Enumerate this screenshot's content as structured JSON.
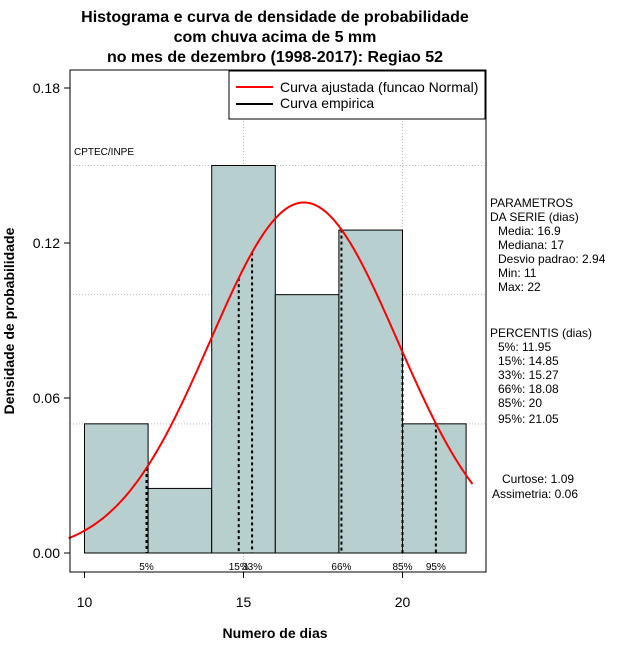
{
  "chart_data": {
    "type": "bar",
    "title_lines": [
      "Histograma e curva de densidade de probabilidade",
      "com chuva acima de 5 mm",
      "no mes de dezembro (1998-2017): Regiao 52"
    ],
    "xlabel": "Numero de dias",
    "ylabel": "Densidade de probabilidade",
    "xlim": [
      9.5,
      22.5
    ],
    "ylim": [
      0,
      0.18
    ],
    "x_ticks": [
      10,
      15,
      20
    ],
    "y_ticks": [
      0.0,
      0.06,
      0.12,
      0.18
    ],
    "y_tick_labels": [
      "0.00",
      "0.06",
      "0.12",
      "0.18"
    ],
    "grid_y": [
      0.05,
      0.1,
      0.15
    ],
    "grid_x": [
      15,
      20
    ],
    "bins": [
      {
        "from": 10,
        "to": 12,
        "density": 0.05
      },
      {
        "from": 12,
        "to": 14,
        "density": 0.025
      },
      {
        "from": 14,
        "to": 16,
        "density": 0.15
      },
      {
        "from": 16,
        "to": 18,
        "density": 0.1
      },
      {
        "from": 18,
        "to": 20,
        "density": 0.125
      },
      {
        "from": 20,
        "to": 22,
        "density": 0.05
      }
    ],
    "normal_curve": {
      "mean": 16.9,
      "sd": 2.94,
      "color": "#ff0000"
    },
    "bar_color": "#b7cfcf",
    "percentiles": [
      {
        "label": "5%",
        "value": 11.95
      },
      {
        "label": "15%",
        "value": 14.85
      },
      {
        "label": "33%",
        "value": 15.27
      },
      {
        "label": "66%",
        "value": 18.08
      },
      {
        "label": "85%",
        "value": 20
      },
      {
        "label": "95%",
        "value": 21.05
      }
    ],
    "legend": [
      {
        "label": "Curva ajustada (funcao Normal)",
        "color": "#ff0000"
      },
      {
        "label": "Curva empirica",
        "color": "#000000"
      }
    ],
    "source_label": "CPTEC/INPE",
    "side_panel": {
      "parametros_title": [
        "PARAMETROS",
        "DA SERIE (dias)"
      ],
      "parametros": [
        "Media: 16.9",
        "Mediana: 17",
        "Desvio padrao: 2.94",
        "Min: 11",
        "Max: 22"
      ],
      "percentis_title": "PERCENTIS (dias)",
      "percentis": [
        "5%: 11.95",
        "15%: 14.85",
        "33%: 15.27",
        "66%: 18.08",
        "85%: 20",
        "95%: 21.05"
      ],
      "extra": [
        "Curtose: 1.09",
        "Assimetria: 0.06"
      ]
    }
  }
}
